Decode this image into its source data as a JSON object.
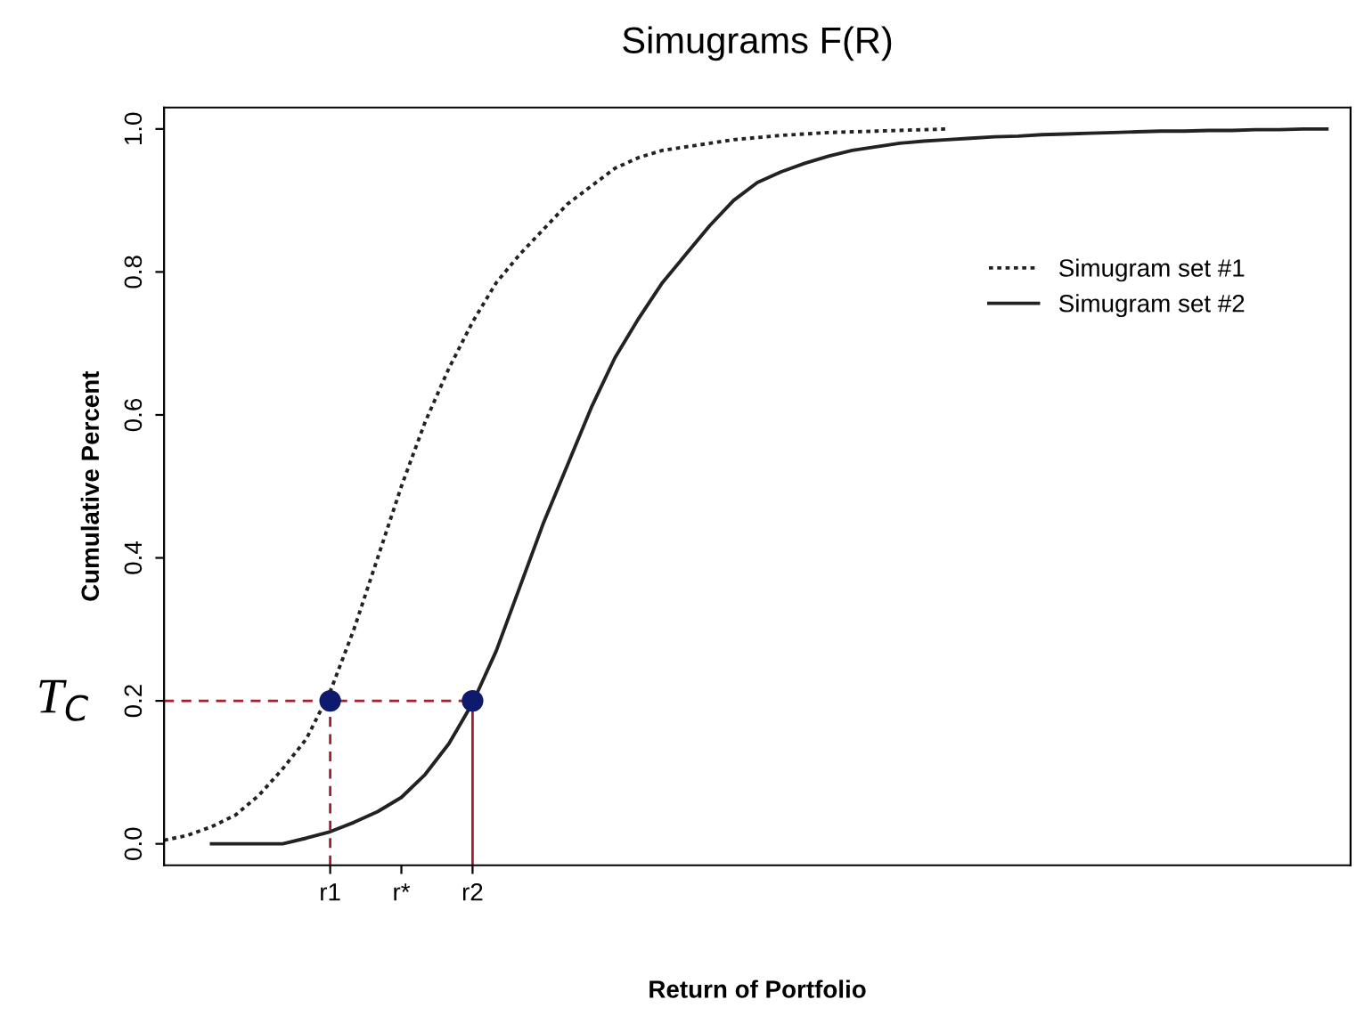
{
  "chart_data": {
    "type": "line",
    "title": "Simugrams F(R)",
    "xlabel": "Return of Portfolio",
    "ylabel": "Cumulative Percent",
    "categories": [
      null,
      null,
      null,
      null,
      null,
      null,
      null,
      "r1",
      null,
      null,
      "r*",
      null,
      null,
      "r2",
      null,
      null,
      null,
      null,
      null,
      null,
      null,
      null,
      null,
      null,
      null,
      null,
      null,
      null,
      null,
      null,
      null,
      null,
      null,
      null,
      null,
      null,
      null,
      null,
      null,
      null,
      null,
      null,
      null,
      null,
      null,
      null,
      null,
      null,
      null,
      null,
      null
    ],
    "ylim": [
      -0.03,
      1.03
    ],
    "yticks": [
      {
        "value": 0,
        "label": "0.0"
      },
      {
        "value": 0.2,
        "label": "0.2"
      },
      {
        "value": 0.4,
        "label": "0.4"
      },
      {
        "value": 0.6,
        "label": "0.6"
      },
      {
        "value": 0.8,
        "label": "0.8"
      },
      {
        "value": 1,
        "label": "1.0"
      }
    ],
    "legend": "top right",
    "annotations": [
      "T$_{C}$"
    ],
    "series": [
      {
        "name": "Simugram set #1",
        "color": "#222222",
        "line_style": "dotted",
        "values": [
          0.005,
          0.012,
          0.024,
          0.04,
          0.068,
          0.105,
          0.147,
          0.213,
          0.3,
          0.4,
          0.5,
          0.59,
          0.665,
          0.73,
          0.785,
          0.825,
          0.86,
          0.895,
          0.92,
          0.945,
          0.96,
          0.97,
          0.975,
          0.98,
          0.985,
          0.988,
          0.991,
          0.993,
          0.995,
          0.996,
          0.997,
          0.998,
          0.999,
          1.0,
          null,
          null,
          null,
          null,
          null,
          null,
          null,
          null,
          null,
          null,
          null,
          null,
          null,
          null,
          null,
          null,
          null
        ]
      },
      {
        "name": "Simugram set #2",
        "color": "#222222",
        "line_style": "solid",
        "values": [
          null,
          null,
          0,
          0,
          0,
          0,
          0.008,
          0.017,
          0.03,
          0.045,
          0.065,
          0.097,
          0.14,
          0.197,
          0.27,
          0.36,
          0.45,
          0.53,
          0.61,
          0.68,
          0.735,
          0.785,
          0.825,
          0.865,
          0.9,
          0.925,
          0.94,
          0.952,
          0.962,
          0.97,
          0.975,
          0.98,
          0.983,
          0.985,
          0.987,
          0.989,
          0.99,
          0.992,
          0.993,
          0.994,
          0.995,
          0.996,
          0.997,
          0.997,
          0.998,
          0.998,
          0.999,
          0.999,
          1.0,
          1.0,
          null
        ]
      },
      {
        "color": "#a02030",
        "line_style": "dashed",
        "values": [
          0.2,
          0.2,
          0.2,
          0.2,
          0.2,
          0.2,
          0.2,
          0.2,
          0.2,
          0.2,
          0.2,
          0.2,
          0.2,
          0.2,
          null,
          null,
          null,
          null,
          null,
          null,
          null,
          null,
          null,
          null,
          null,
          null,
          null,
          null,
          null,
          null,
          null,
          null,
          null,
          null,
          null,
          null,
          null,
          null,
          null,
          null,
          null,
          null,
          null,
          null,
          null,
          null,
          null,
          null,
          null,
          null,
          null
        ]
      },
      {
        "type": "scatter",
        "color": "#0d1a6e",
        "line_style": "dashed",
        "values": [
          null,
          null,
          null,
          null,
          null,
          null,
          null,
          0.2,
          null,
          null,
          null,
          null,
          null,
          null,
          null,
          null,
          null,
          null,
          null,
          null,
          null,
          null,
          null,
          null,
          null,
          null,
          null,
          null,
          null,
          null,
          null,
          null,
          null,
          null,
          null,
          null,
          null,
          null,
          null,
          null,
          null,
          null,
          null,
          null,
          null,
          null,
          null,
          null,
          null,
          null,
          null
        ],
        "errors": [
          null,
          null,
          null,
          null,
          null,
          null,
          null,
          [
            -0.03,
            0.2
          ],
          null,
          null,
          null,
          null,
          null,
          null,
          null,
          null,
          null,
          null,
          null,
          null,
          null,
          null,
          null,
          null,
          null,
          null,
          null,
          null,
          null,
          null,
          null,
          null,
          null,
          null,
          null,
          null,
          null,
          null,
          null,
          null,
          null,
          null,
          null,
          null,
          null,
          null,
          null,
          null,
          null,
          null,
          null
        ]
      },
      {
        "type": "scatter",
        "color": "#0d1a6e",
        "line_style": "solid",
        "values": [
          null,
          null,
          null,
          null,
          null,
          null,
          null,
          null,
          null,
          null,
          null,
          null,
          null,
          0.2,
          null,
          null,
          null,
          null,
          null,
          null,
          null,
          null,
          null,
          null,
          null,
          null,
          null,
          null,
          null,
          null,
          null,
          null,
          null,
          null,
          null,
          null,
          null,
          null,
          null,
          null,
          null,
          null,
          null,
          null,
          null,
          null,
          null,
          null,
          null,
          null,
          null
        ],
        "errors": [
          null,
          null,
          null,
          null,
          null,
          null,
          null,
          null,
          null,
          null,
          null,
          null,
          null,
          [
            -0.03,
            0.2
          ],
          null,
          null,
          null,
          null,
          null,
          null,
          null,
          null,
          null,
          null,
          null,
          null,
          null,
          null,
          null,
          null,
          null,
          null,
          null,
          null,
          null,
          null,
          null,
          null,
          null,
          null,
          null,
          null,
          null,
          null,
          null,
          null,
          null,
          null,
          null,
          null,
          null
        ]
      }
    ]
  }
}
